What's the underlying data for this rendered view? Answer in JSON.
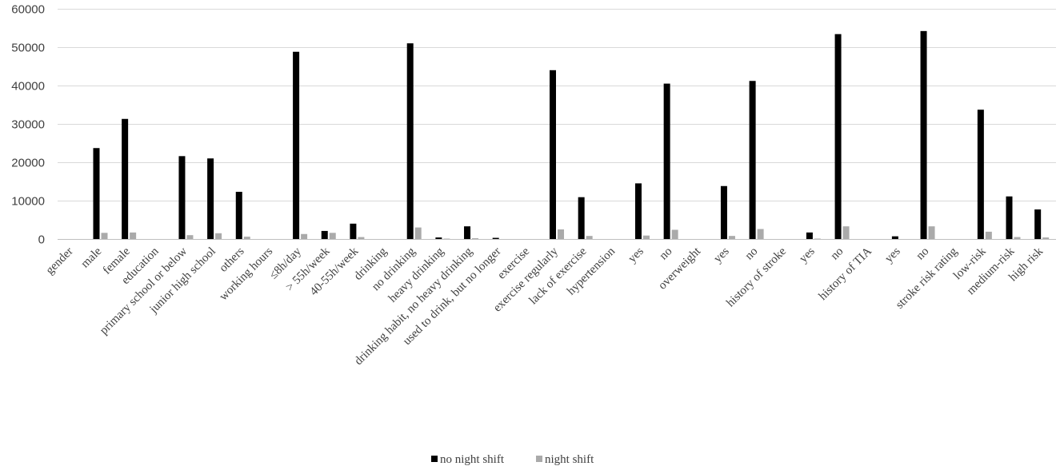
{
  "chart_data": {
    "type": "bar",
    "title": "",
    "xlabel": "",
    "ylabel": "",
    "ylim": [
      0,
      60000
    ],
    "yticks": [
      0,
      10000,
      20000,
      30000,
      40000,
      50000,
      60000
    ],
    "grid": true,
    "legend_position": "bottom",
    "categories": [
      "gender",
      "male",
      "female",
      "education",
      "primary school or below",
      "junior high school",
      "others",
      "working hours",
      "≤8h/day",
      "> 55h/week",
      "40-55h/week",
      "drinking",
      "no drinking",
      "heavy drinking",
      "drinking habit, no heavy drinking",
      "used to drink, but no longer",
      "exercise",
      "exercise regularly",
      "lack of exercise",
      "hypertension",
      "yes",
      "no",
      "overweight",
      "yes",
      "no",
      "history of stroke",
      "yes",
      "no",
      "history of TIA",
      "yes",
      "no",
      "stroke risk rating",
      "low-risk",
      "medium-risk",
      "high risk"
    ],
    "series": [
      {
        "name": "no night shift",
        "color": "#000000",
        "values": [
          0,
          23700,
          31300,
          0,
          21600,
          21000,
          12300,
          0,
          48800,
          2100,
          4000,
          0,
          51000,
          400,
          3300,
          300,
          0,
          44000,
          10900,
          0,
          14500,
          40500,
          0,
          13800,
          41200,
          0,
          1700,
          53400,
          0,
          700,
          54200,
          0,
          33700,
          11100,
          7700
        ]
      },
      {
        "name": "night shift",
        "color": "#aaaaaa",
        "values": [
          0,
          1600,
          1700,
          0,
          1000,
          1500,
          600,
          0,
          1300,
          1600,
          500,
          0,
          3000,
          100,
          200,
          0,
          0,
          2500,
          800,
          0,
          900,
          2400,
          0,
          800,
          2600,
          0,
          100,
          3300,
          0,
          0,
          3300,
          0,
          1900,
          500,
          400
        ]
      }
    ]
  }
}
